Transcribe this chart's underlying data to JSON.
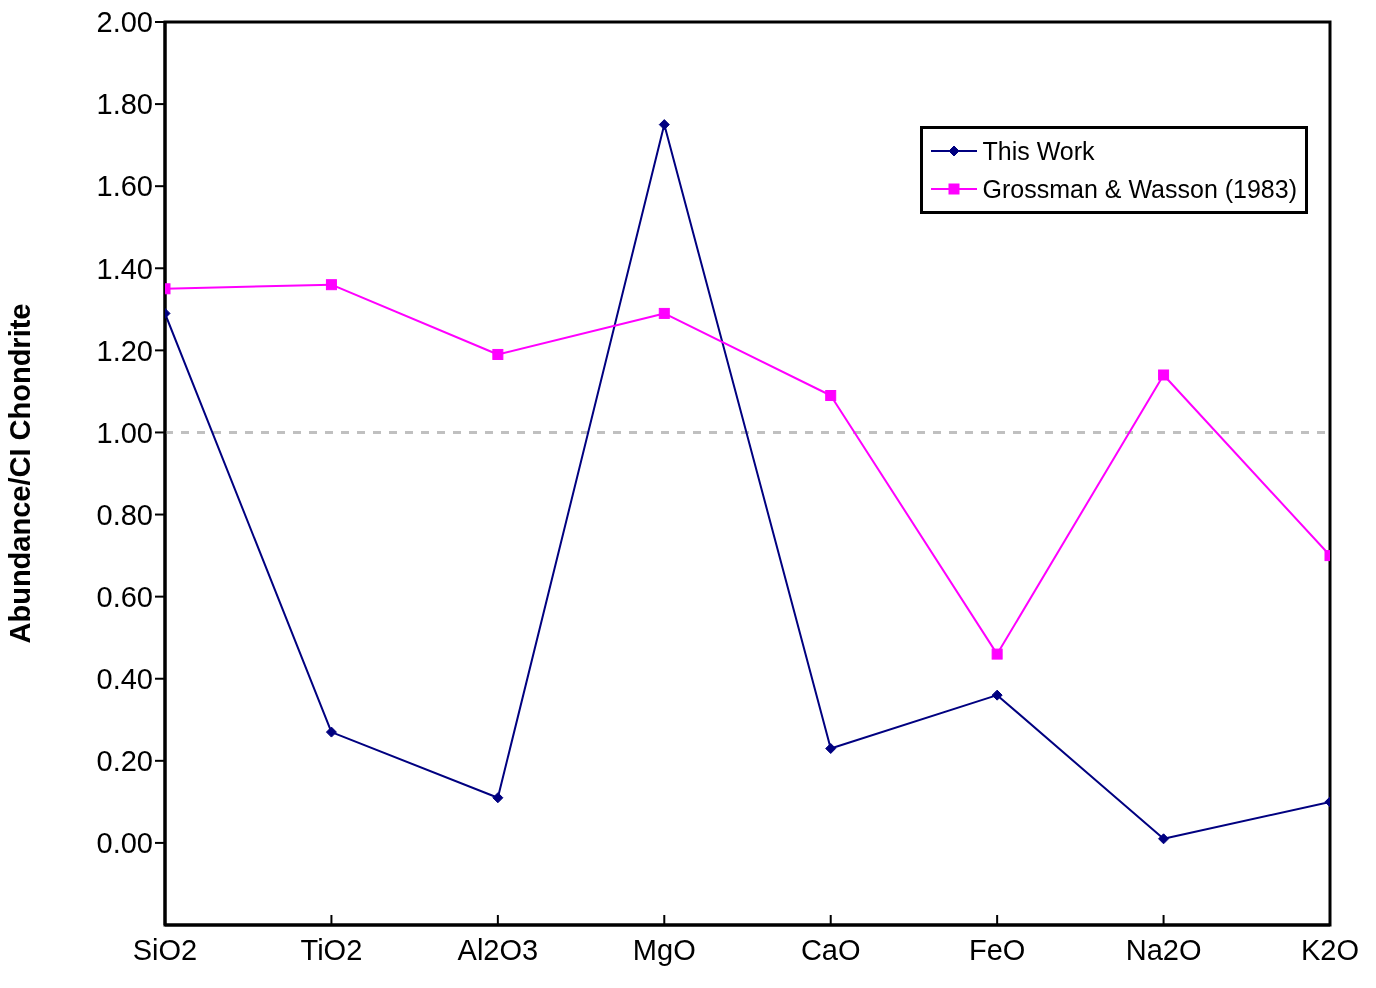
{
  "chart_data": {
    "type": "line",
    "ylabel": "Abundance/CI Chondrite",
    "categories": [
      "SiO2",
      "TiO2",
      "Al2O3",
      "MgO",
      "CaO",
      "FeO",
      "Na2O",
      "K2O"
    ],
    "series": [
      {
        "name": "This Work",
        "color": "#000080",
        "marker": "diamond",
        "values": [
          1.29,
          0.27,
          0.11,
          1.75,
          0.23,
          0.36,
          0.01,
          0.1
        ]
      },
      {
        "name": "Grossman & Wasson (1983)",
        "color": "#ff00ff",
        "marker": "square",
        "values": [
          1.35,
          1.36,
          1.19,
          1.29,
          1.09,
          0.46,
          1.14,
          0.7
        ]
      }
    ],
    "ylim": [
      -0.2,
      2.0
    ],
    "yticks": [
      {
        "value": 0,
        "label": "0.00"
      },
      {
        "value": 0.2,
        "label": "0.20"
      },
      {
        "value": 0.4,
        "label": "0.40"
      },
      {
        "value": 0.6,
        "label": "0.60"
      },
      {
        "value": 0.8,
        "label": "0.80"
      },
      {
        "value": 1.0,
        "label": "1.00"
      },
      {
        "value": 1.2,
        "label": "1.20"
      },
      {
        "value": 1.4,
        "label": "1.40"
      },
      {
        "value": 1.6,
        "label": "1.60"
      },
      {
        "value": 1.8,
        "label": "1.80"
      },
      {
        "value": 2.0,
        "label": "2.00"
      }
    ],
    "ref_lines": [
      {
        "axis": "y",
        "value": 1.0,
        "color": "#c0c0c0",
        "line_style": "dashed"
      }
    ],
    "grid": false,
    "legend": "top right",
    "line_style": "solid"
  }
}
